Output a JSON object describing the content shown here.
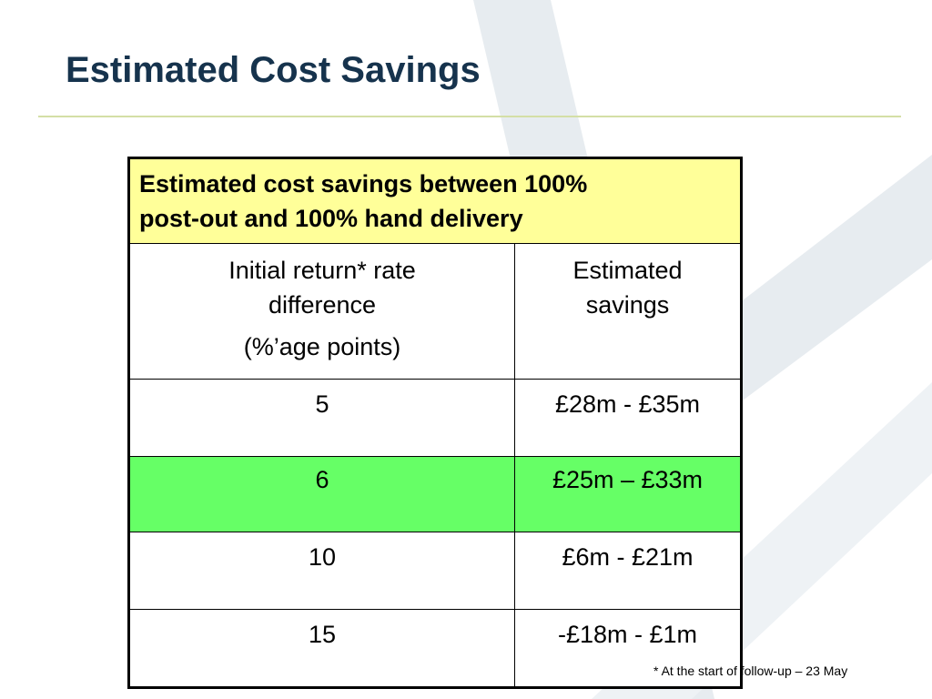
{
  "slide": {
    "title": "Estimated Cost Savings",
    "footnote": "* At the start of follow-up – 23 May"
  },
  "table": {
    "caption_lines": [
      "Estimated cost savings between 100%",
      "post-out and 100% hand delivery"
    ],
    "col_a_header_lines": [
      "Initial return* rate",
      "difference"
    ],
    "col_a_header_sub": "(%’age points)",
    "col_b_header_lines": [
      "Estimated",
      "savings"
    ],
    "rows": [
      {
        "diff": "5",
        "savings": "£28m - £35m",
        "highlighted": false
      },
      {
        "diff": "6",
        "savings": "£25m – £33m",
        "highlighted": true
      },
      {
        "diff": "10",
        "savings": "£6m - £21m",
        "highlighted": false
      },
      {
        "diff": "15",
        "savings": "-£18m - £1m",
        "highlighted": false
      }
    ]
  },
  "colors": {
    "title": "#16334d",
    "rule": "#d4dfa6",
    "caption_bg": "#ffff99",
    "highlight_bg": "#66ff66",
    "background_swoosh": "#e3e9ee"
  }
}
